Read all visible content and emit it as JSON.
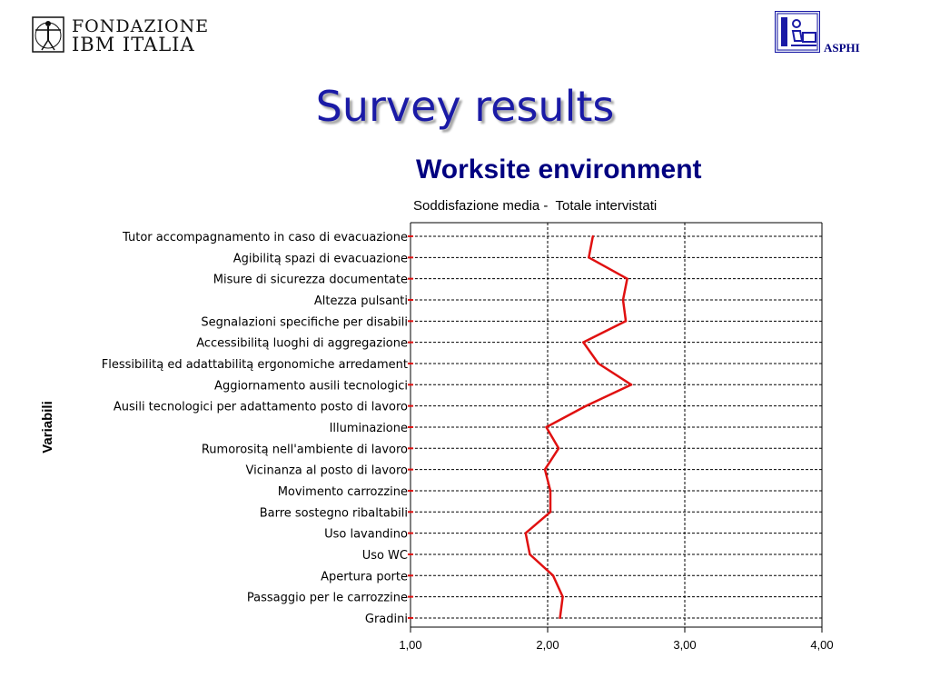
{
  "header": {
    "logo_left": {
      "line1": "FONDAZIONE",
      "line2": "IBM ITALIA",
      "icon": "vitruvian-man-icon"
    },
    "logo_right": {
      "text": "ASPHI",
      "icon": "workstation-icon"
    }
  },
  "page_title": "Survey results",
  "colors": {
    "title": "#1a1aa6",
    "chart_title": "#000080",
    "series": "#e01010"
  },
  "chart_data": {
    "type": "line",
    "orientation": "horizontal",
    "title": "Worksite environment",
    "subtitle": "Soddisfazione media -  Totale intervistati",
    "ylabel": "Variabili",
    "xlabel": "",
    "xlim": [
      1.0,
      4.0
    ],
    "x_ticks": [
      1.0,
      2.0,
      3.0,
      4.0
    ],
    "x_tick_labels": [
      "1,00",
      "2,00",
      "3,00",
      "4,00"
    ],
    "grid": true,
    "categories": [
      "Tutor accompagnamento in caso di evacuazione",
      "Agibilitą spazi di evacuazione ",
      "Misure di sicurezza documentate",
      "Altezza pulsanti",
      "Segnalazioni specifiche per disabili ",
      "Accessibilitą luoghi di aggregazione ",
      "Flessibilitą ed adattabilitą ergonomiche arredament",
      "Aggiornamento ausili tecnologici ",
      "Ausili tecnologici per adattamento posto di lavoro",
      "Illuminazione ",
      "Rumorositą nell'ambiente di lavoro",
      "Vicinanza al posto di lavoro ",
      "Movimento carrozzine",
      "Barre sostegno ribaltabili",
      "Uso lavandino ",
      "Uso WC ",
      "Apertura porte",
      "Passaggio per le carrozzine ",
      "Gradini"
    ],
    "series": [
      {
        "values": [
          2.33,
          2.3,
          2.58,
          2.55,
          2.57,
          2.26,
          2.37,
          2.61,
          2.28,
          1.99,
          2.08,
          1.98,
          2.02,
          2.02,
          1.84,
          1.87,
          2.04,
          2.11,
          2.09
        ]
      }
    ]
  }
}
